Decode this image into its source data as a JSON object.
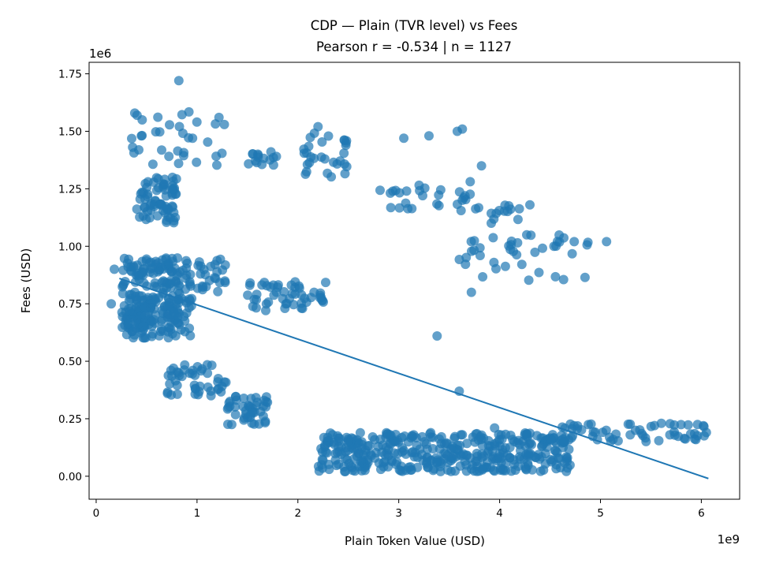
{
  "chart_data": {
    "type": "scatter",
    "title": "CDP — Plain (TVR level) vs Fees",
    "subtitle": "Pearson r = -0.534 | n = 1127",
    "xlabel": "Plain Token Value (USD)",
    "ylabel": "Fees (USD)",
    "x_multiplier": "1e9",
    "y_multiplier": "1e6",
    "xlim": [
      -0.07,
      6.38
    ],
    "ylim": [
      -0.1,
      1.8
    ],
    "x_ticks": [
      0,
      1,
      2,
      3,
      4,
      5,
      6
    ],
    "x_tick_labels": [
      "0",
      "1",
      "2",
      "3",
      "4",
      "5",
      "6"
    ],
    "y_ticks": [
      0,
      0.25,
      0.5,
      0.75,
      1.0,
      1.25,
      1.5,
      1.75
    ],
    "y_tick_labels": [
      "0.00",
      "0.25",
      "0.50",
      "0.75",
      "1.00",
      "1.25",
      "1.50",
      "1.75"
    ],
    "grid": false,
    "legend": "none",
    "point_color": "#1f77b4",
    "line_color": "#1f77b4",
    "fit_line": {
      "x": [
        0.23,
        6.07
      ],
      "y": [
        0.86,
        -0.01
      ]
    },
    "clusters": [
      {
        "x": [
          0.25,
          0.95
        ],
        "y": [
          0.6,
          0.95
        ],
        "n": 230
      },
      {
        "x": [
          0.3,
          0.6
        ],
        "y": [
          0.65,
          0.75
        ],
        "n": 40
      },
      {
        "x": [
          0.4,
          0.8
        ],
        "y": [
          1.1,
          1.3
        ],
        "n": 70
      },
      {
        "x": [
          0.35,
          1.3
        ],
        "y": [
          1.35,
          1.6
        ],
        "n": 35
      },
      {
        "x": [
          0.7,
          1.3
        ],
        "y": [
          0.35,
          0.5
        ],
        "n": 45
      },
      {
        "x": [
          1.0,
          1.3
        ],
        "y": [
          0.8,
          0.95
        ],
        "n": 25
      },
      {
        "x": [
          1.3,
          1.7
        ],
        "y": [
          0.22,
          0.35
        ],
        "n": 45
      },
      {
        "x": [
          1.5,
          2.3
        ],
        "y": [
          0.72,
          0.85
        ],
        "n": 50
      },
      {
        "x": [
          1.45,
          1.8
        ],
        "y": [
          1.35,
          1.42
        ],
        "n": 15
      },
      {
        "x": [
          2.05,
          2.5
        ],
        "y": [
          1.3,
          1.5
        ],
        "n": 30
      },
      {
        "x": [
          2.2,
          4.7
        ],
        "y": [
          0.02,
          0.19
        ],
        "n": 400
      },
      {
        "x": [
          2.8,
          3.9
        ],
        "y": [
          1.15,
          1.3
        ],
        "n": 30
      },
      {
        "x": [
          3.6,
          4.9
        ],
        "y": [
          0.85,
          1.05
        ],
        "n": 40
      },
      {
        "x": [
          3.9,
          4.2
        ],
        "y": [
          1.1,
          1.18
        ],
        "n": 12
      },
      {
        "x": [
          4.6,
          6.1
        ],
        "y": [
          0.15,
          0.23
        ],
        "n": 55
      }
    ],
    "points": [
      {
        "x": 0.82,
        "y": 1.72
      },
      {
        "x": 3.6,
        "y": 0.37
      },
      {
        "x": 3.38,
        "y": 0.61
      },
      {
        "x": 3.72,
        "y": 0.8
      },
      {
        "x": 3.63,
        "y": 1.51
      },
      {
        "x": 3.58,
        "y": 1.5
      },
      {
        "x": 3.3,
        "y": 1.48
      },
      {
        "x": 3.05,
        "y": 1.47
      },
      {
        "x": 2.2,
        "y": 1.52
      },
      {
        "x": 3.82,
        "y": 1.35
      },
      {
        "x": 0.18,
        "y": 0.9
      },
      {
        "x": 0.15,
        "y": 0.75
      },
      {
        "x": 6.05,
        "y": 0.19
      },
      {
        "x": 6.02,
        "y": 0.22
      },
      {
        "x": 4.3,
        "y": 1.18
      },
      {
        "x": 5.06,
        "y": 1.02
      },
      {
        "x": 4.74,
        "y": 1.02
      },
      {
        "x": 3.95,
        "y": 0.21
      }
    ]
  }
}
